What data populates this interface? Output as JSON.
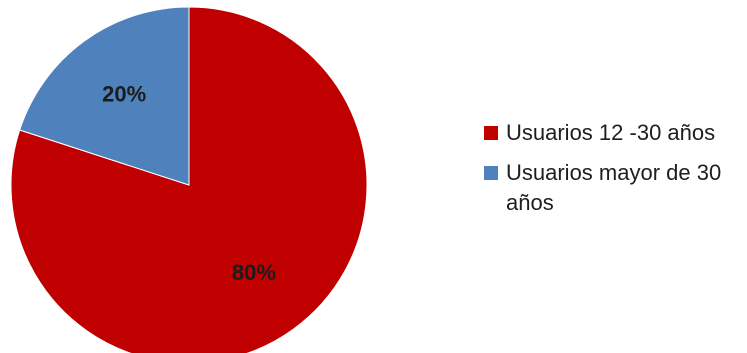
{
  "chart_data": {
    "type": "pie",
    "title": "",
    "legend_position": "right",
    "slices": [
      {
        "label": "Usuarios 12 -30 años",
        "value": 80,
        "display": "80%",
        "color": "#c00000"
      },
      {
        "label": "Usuarios mayor de 30 años",
        "value": 20,
        "display": "20%",
        "color": "#4f81bd"
      }
    ]
  }
}
